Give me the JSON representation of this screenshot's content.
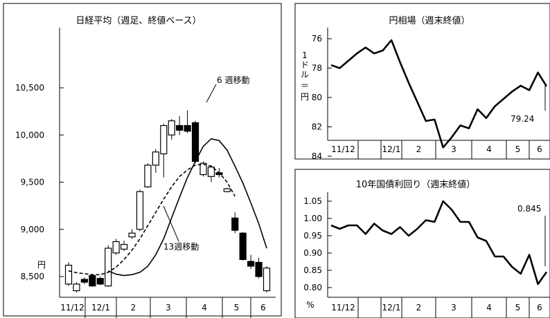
{
  "chart_data": [
    {
      "type": "candlestick",
      "title": "日経平均（週足、終値ベース）",
      "y_unit": "円",
      "ylim": [
        8250,
        10950
      ],
      "yticks": [
        8500,
        9000,
        9500,
        10000,
        10500
      ],
      "ytick_labels": [
        "8,500",
        "9,000",
        "9,500",
        "10,000",
        "10,500"
      ],
      "month_labels": [
        "11/12",
        "12/1",
        "2",
        "3",
        "4",
        "5",
        "6"
      ],
      "candles": [
        {
          "o": 8420,
          "c": 8620,
          "h": 8650,
          "l": 8400
        },
        {
          "o": 8350,
          "c": 8420,
          "h": 8440,
          "l": 8330
        },
        {
          "o": 8470,
          "c": 8440,
          "h": 8490,
          "l": 8420
        },
        {
          "o": 8510,
          "c": 8400,
          "h": 8520,
          "l": 8390
        },
        {
          "o": 8480,
          "c": 8420,
          "h": 8500,
          "l": 8410
        },
        {
          "o": 8400,
          "c": 8800,
          "h": 8830,
          "l": 8390
        },
        {
          "o": 8750,
          "c": 8870,
          "h": 8900,
          "l": 8730
        },
        {
          "o": 8790,
          "c": 8840,
          "h": 8880,
          "l": 8770
        },
        {
          "o": 8920,
          "c": 8960,
          "h": 9000,
          "l": 8900
        },
        {
          "o": 9000,
          "c": 9400,
          "h": 9420,
          "l": 8980
        },
        {
          "o": 9450,
          "c": 9680,
          "h": 9700,
          "l": 9440
        },
        {
          "o": 9680,
          "c": 9820,
          "h": 9850,
          "l": 9600
        },
        {
          "o": 9800,
          "c": 10100,
          "h": 10120,
          "l": 9550
        },
        {
          "o": 10000,
          "c": 10150,
          "h": 10170,
          "l": 9950
        },
        {
          "o": 10100,
          "c": 10050,
          "h": 10200,
          "l": 10000
        },
        {
          "o": 10100,
          "c": 10040,
          "h": 10260,
          "l": 10020
        },
        {
          "o": 10130,
          "c": 9720,
          "h": 10150,
          "l": 9700
        },
        {
          "o": 9580,
          "c": 9700,
          "h": 9720,
          "l": 9560
        },
        {
          "o": 9560,
          "c": 9660,
          "h": 9680,
          "l": 9500
        },
        {
          "o": 9600,
          "c": 9580,
          "h": 9650,
          "l": 9550
        },
        {
          "o": 9400,
          "c": 9430,
          "h": 9440,
          "l": 9390
        },
        {
          "o": 9120,
          "c": 8990,
          "h": 9180,
          "l": 8960
        },
        {
          "o": 8960,
          "c": 8680,
          "h": 8970,
          "l": 8670
        },
        {
          "o": 8660,
          "c": 8610,
          "h": 8730,
          "l": 8580
        },
        {
          "o": 8650,
          "c": 8500,
          "h": 8700,
          "l": 8480
        },
        {
          "o": 8350,
          "c": 8590,
          "h": 8610,
          "l": 8330
        }
      ],
      "ma6": [
        8560,
        8525,
        8510,
        8520,
        8545,
        8610,
        8730,
        8900,
        9120,
        9340,
        9550,
        9720,
        9880,
        9960,
        9940,
        9840,
        9670,
        9490,
        9280,
        9060,
        8800
      ],
      "ma13": [
        8560,
        8540,
        8530,
        8520,
        8520,
        8545,
        8600,
        8680,
        8780,
        8900,
        9040,
        9180,
        9320,
        9450,
        9560,
        9630,
        9680,
        9690,
        9670,
        9600,
        9500,
        9350
      ],
      "annotations": [
        "6 週移動",
        "13週移動"
      ]
    },
    {
      "type": "line",
      "title": "円相場（週末終値）",
      "y_unit": "1ドル＝円",
      "y_inverted": true,
      "ylim": [
        74.8,
        85.2
      ],
      "yticks": [
        76,
        78,
        80,
        82,
        84
      ],
      "month_labels": [
        "11/12",
        "12/1",
        "2",
        "3",
        "4",
        "5",
        "6"
      ],
      "values": [
        77.8,
        78.0,
        77.5,
        77.0,
        76.6,
        77.0,
        76.8,
        76.1,
        77.6,
        79.0,
        80.3,
        81.6,
        81.5,
        83.4,
        82.7,
        81.9,
        82.1,
        80.8,
        81.4,
        80.6,
        80.1,
        79.6,
        79.2,
        79.5,
        78.3,
        79.24
      ],
      "last_label": "79.24"
    },
    {
      "type": "line",
      "title": "10年国債利回り（週末終値）",
      "y_unit": "%",
      "ylim": [
        0.785,
        1.07
      ],
      "yticks": [
        0.8,
        0.85,
        0.9,
        0.95,
        1.0,
        1.05
      ],
      "ytick_labels": [
        "0.80",
        "0.85",
        "0.90",
        "0.95",
        "1.00",
        "1.05"
      ],
      "month_labels": [
        "11/12",
        "12/1",
        "2",
        "3",
        "4",
        "5",
        "6"
      ],
      "values": [
        0.98,
        0.97,
        0.98,
        0.98,
        0.955,
        0.985,
        0.965,
        0.955,
        0.975,
        0.95,
        0.97,
        0.995,
        0.99,
        1.05,
        1.025,
        0.99,
        0.99,
        0.945,
        0.935,
        0.89,
        0.89,
        0.86,
        0.84,
        0.895,
        0.81,
        0.845
      ],
      "last_label": "0.845"
    }
  ]
}
